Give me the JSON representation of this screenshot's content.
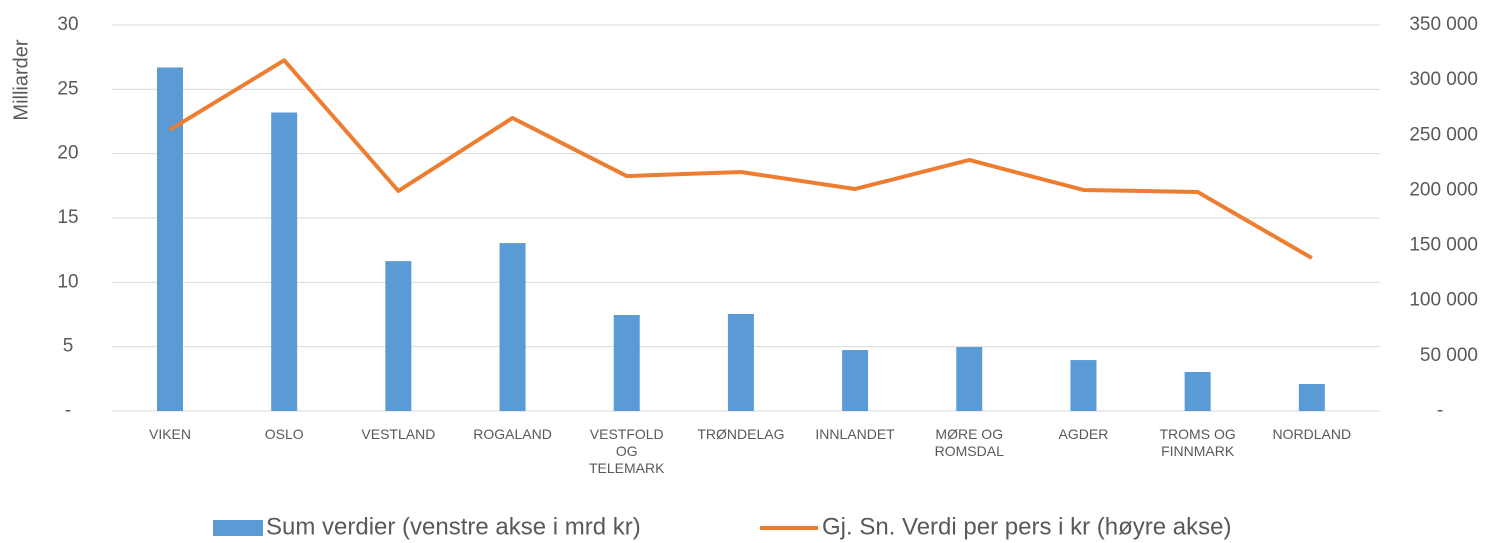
{
  "chart_data": {
    "type": "bar-line",
    "y_label": "Milliarder",
    "categories": [
      "VIKEN",
      "OSLO",
      "VESTLAND",
      "ROGALAND",
      "VESTFOLD OG TELEMARK",
      "TRØNDELAG",
      "INNLANDET",
      "MØRE OG ROMSDAL",
      "AGDER",
      "TROMS OG FINNMARK",
      "NORDLAND"
    ],
    "series": [
      {
        "name": "Sum verdier (venstre akse i mrd kr)",
        "type": "bar",
        "color": "#5b9bd5",
        "axis": "y",
        "values": [
          26.7,
          23.2,
          11.65,
          13.05,
          7.46,
          7.54,
          4.74,
          4.97,
          3.96,
          3.03,
          2.1
        ]
      },
      {
        "name": "Gj. Sn. Verdi per pers i kr (høyre akse)",
        "type": "line",
        "color": "#ed7d31",
        "axis": "y2",
        "values": [
          255000,
          318000,
          199500,
          265700,
          213000,
          216700,
          201300,
          227600,
          200400,
          198600,
          138700
        ]
      }
    ],
    "ylim": [
      0,
      30
    ],
    "yticks": [
      {
        "value": 0,
        "label": "-"
      },
      5,
      10,
      15,
      20,
      25,
      30
    ],
    "y2lim": [
      0,
      350000
    ],
    "y2ticks": [
      {
        "value": 0,
        "label": "-"
      },
      {
        "value": 50000,
        "label": "50 000"
      },
      {
        "value": 100000,
        "label": "100 000"
      },
      {
        "value": 150000,
        "label": "150 000"
      },
      {
        "value": 200000,
        "label": "200 000"
      },
      {
        "value": 250000,
        "label": "250 000"
      },
      {
        "value": 300000,
        "label": "300 000"
      },
      {
        "value": 350000,
        "label": "350 000"
      }
    ],
    "grid": true
  }
}
